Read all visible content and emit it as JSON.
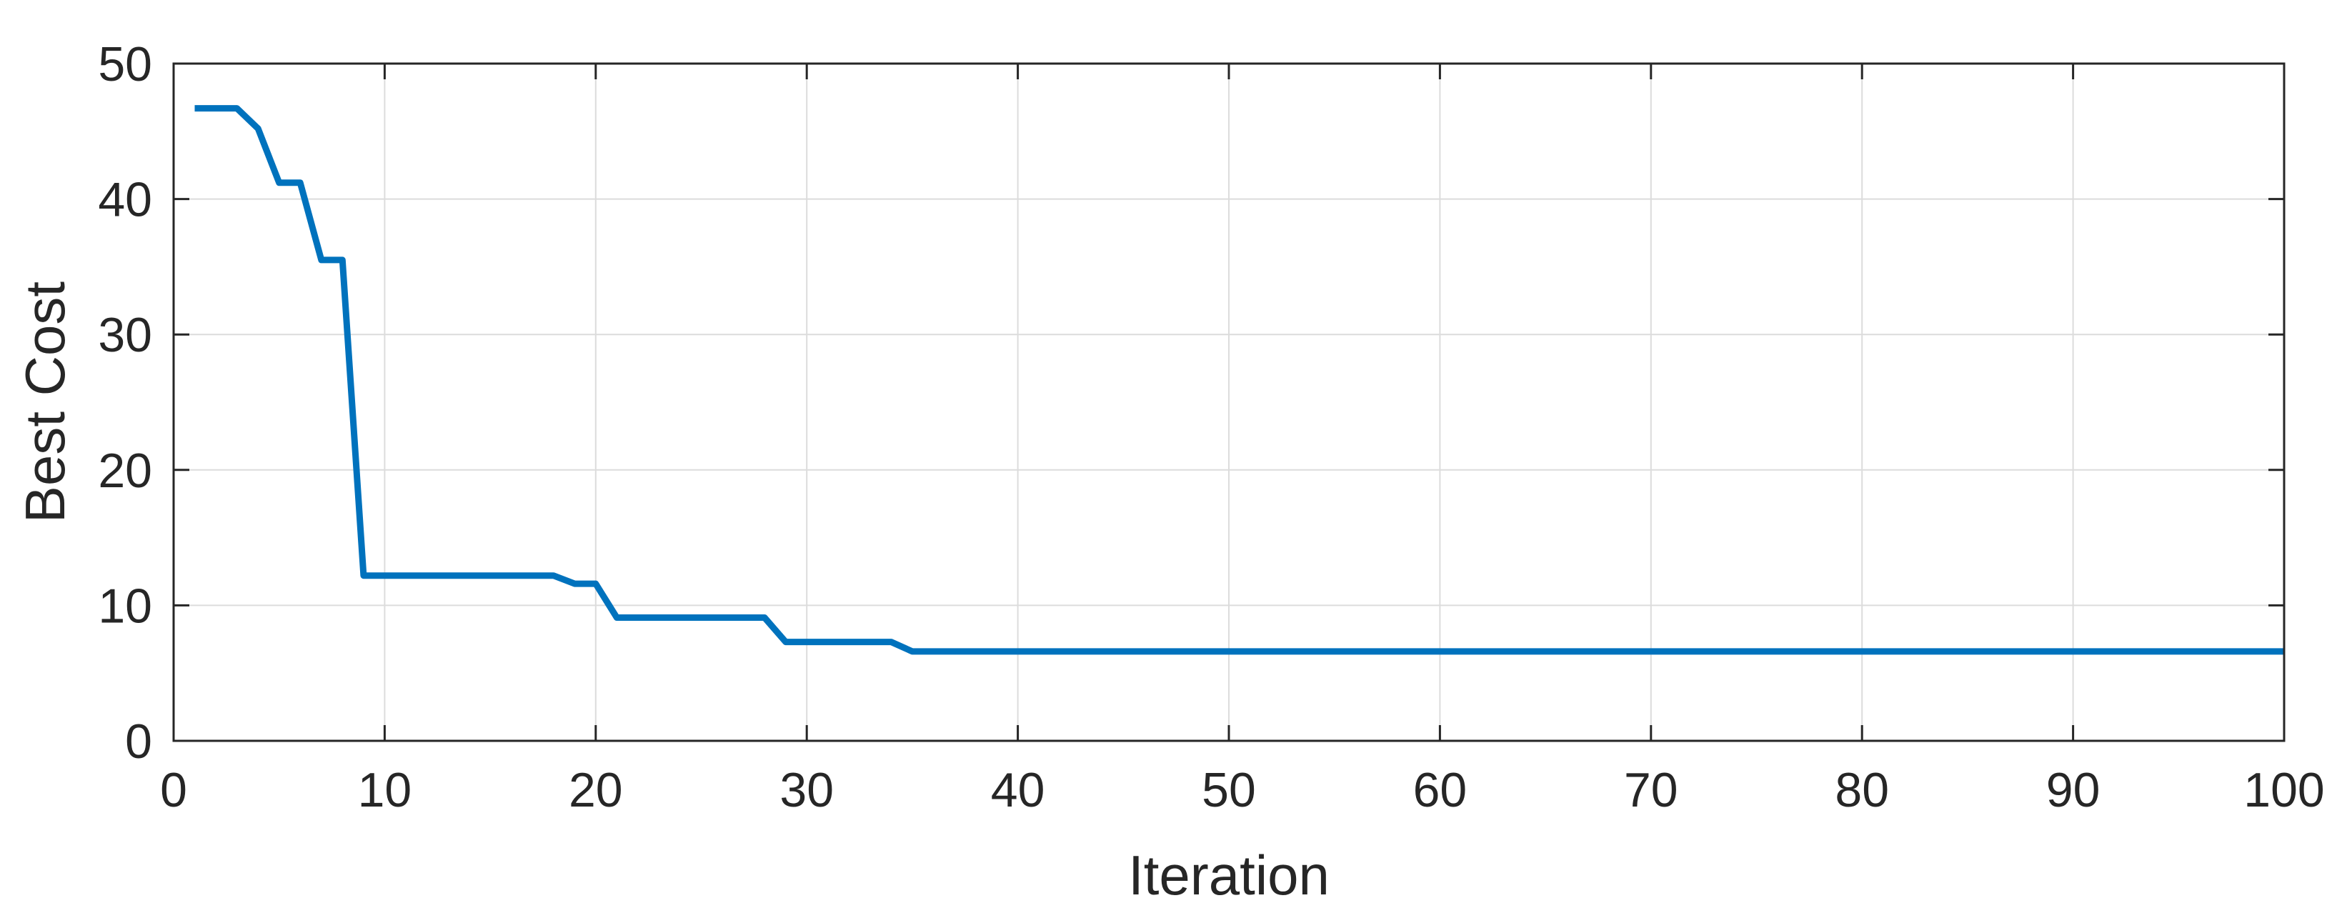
{
  "chart_data": {
    "type": "line",
    "title": "",
    "xlabel": "Iteration",
    "ylabel": "Best Cost",
    "xlim": [
      0,
      100
    ],
    "ylim": [
      0,
      50
    ],
    "xticks": [
      0,
      10,
      20,
      30,
      40,
      50,
      60,
      70,
      80,
      90,
      100
    ],
    "yticks": [
      0,
      10,
      20,
      30,
      40,
      50
    ],
    "grid": true,
    "legend": "none",
    "colors": {
      "line": "#0072bd",
      "axis": "#262626",
      "grid": "#dcdcdc"
    },
    "series": [
      {
        "x": [
          1,
          2,
          3,
          4,
          5,
          6,
          7,
          8,
          9,
          10,
          11,
          12,
          13,
          14,
          15,
          16,
          17,
          18,
          19,
          20,
          21,
          22,
          23,
          24,
          25,
          26,
          27,
          28,
          29,
          30,
          31,
          32,
          33,
          34,
          35,
          36,
          37,
          38,
          39,
          40,
          41,
          42,
          43,
          44,
          45,
          46,
          47,
          48,
          49,
          50,
          51,
          52,
          53,
          54,
          55,
          56,
          57,
          58,
          59,
          60,
          61,
          62,
          63,
          64,
          65,
          66,
          67,
          68,
          69,
          70,
          71,
          72,
          73,
          74,
          75,
          76,
          77,
          78,
          79,
          80,
          81,
          82,
          83,
          84,
          85,
          86,
          87,
          88,
          89,
          90,
          91,
          92,
          93,
          94,
          95,
          96,
          97,
          98,
          99,
          100
        ],
        "y": [
          46.7,
          46.7,
          46.7,
          45.2,
          41.2,
          41.2,
          35.5,
          35.5,
          12.2,
          12.2,
          12.2,
          12.2,
          12.2,
          12.2,
          12.2,
          12.2,
          12.2,
          12.2,
          11.6,
          11.6,
          9.1,
          9.1,
          9.1,
          9.1,
          9.1,
          9.1,
          9.1,
          9.1,
          7.3,
          7.3,
          7.3,
          7.3,
          7.3,
          7.3,
          6.6,
          6.6,
          6.6,
          6.6,
          6.6,
          6.6,
          6.6,
          6.6,
          6.6,
          6.6,
          6.6,
          6.6,
          6.6,
          6.6,
          6.6,
          6.6,
          6.6,
          6.6,
          6.6,
          6.6,
          6.6,
          6.6,
          6.6,
          6.6,
          6.6,
          6.6,
          6.6,
          6.6,
          6.6,
          6.6,
          6.6,
          6.6,
          6.6,
          6.6,
          6.6,
          6.6,
          6.6,
          6.6,
          6.6,
          6.6,
          6.6,
          6.6,
          6.6,
          6.6,
          6.6,
          6.6,
          6.6,
          6.6,
          6.6,
          6.6,
          6.6,
          6.6,
          6.6,
          6.6,
          6.6,
          6.6,
          6.6,
          6.6,
          6.6,
          6.6,
          6.6,
          6.6,
          6.6,
          6.6,
          6.6,
          6.6
        ]
      }
    ]
  }
}
